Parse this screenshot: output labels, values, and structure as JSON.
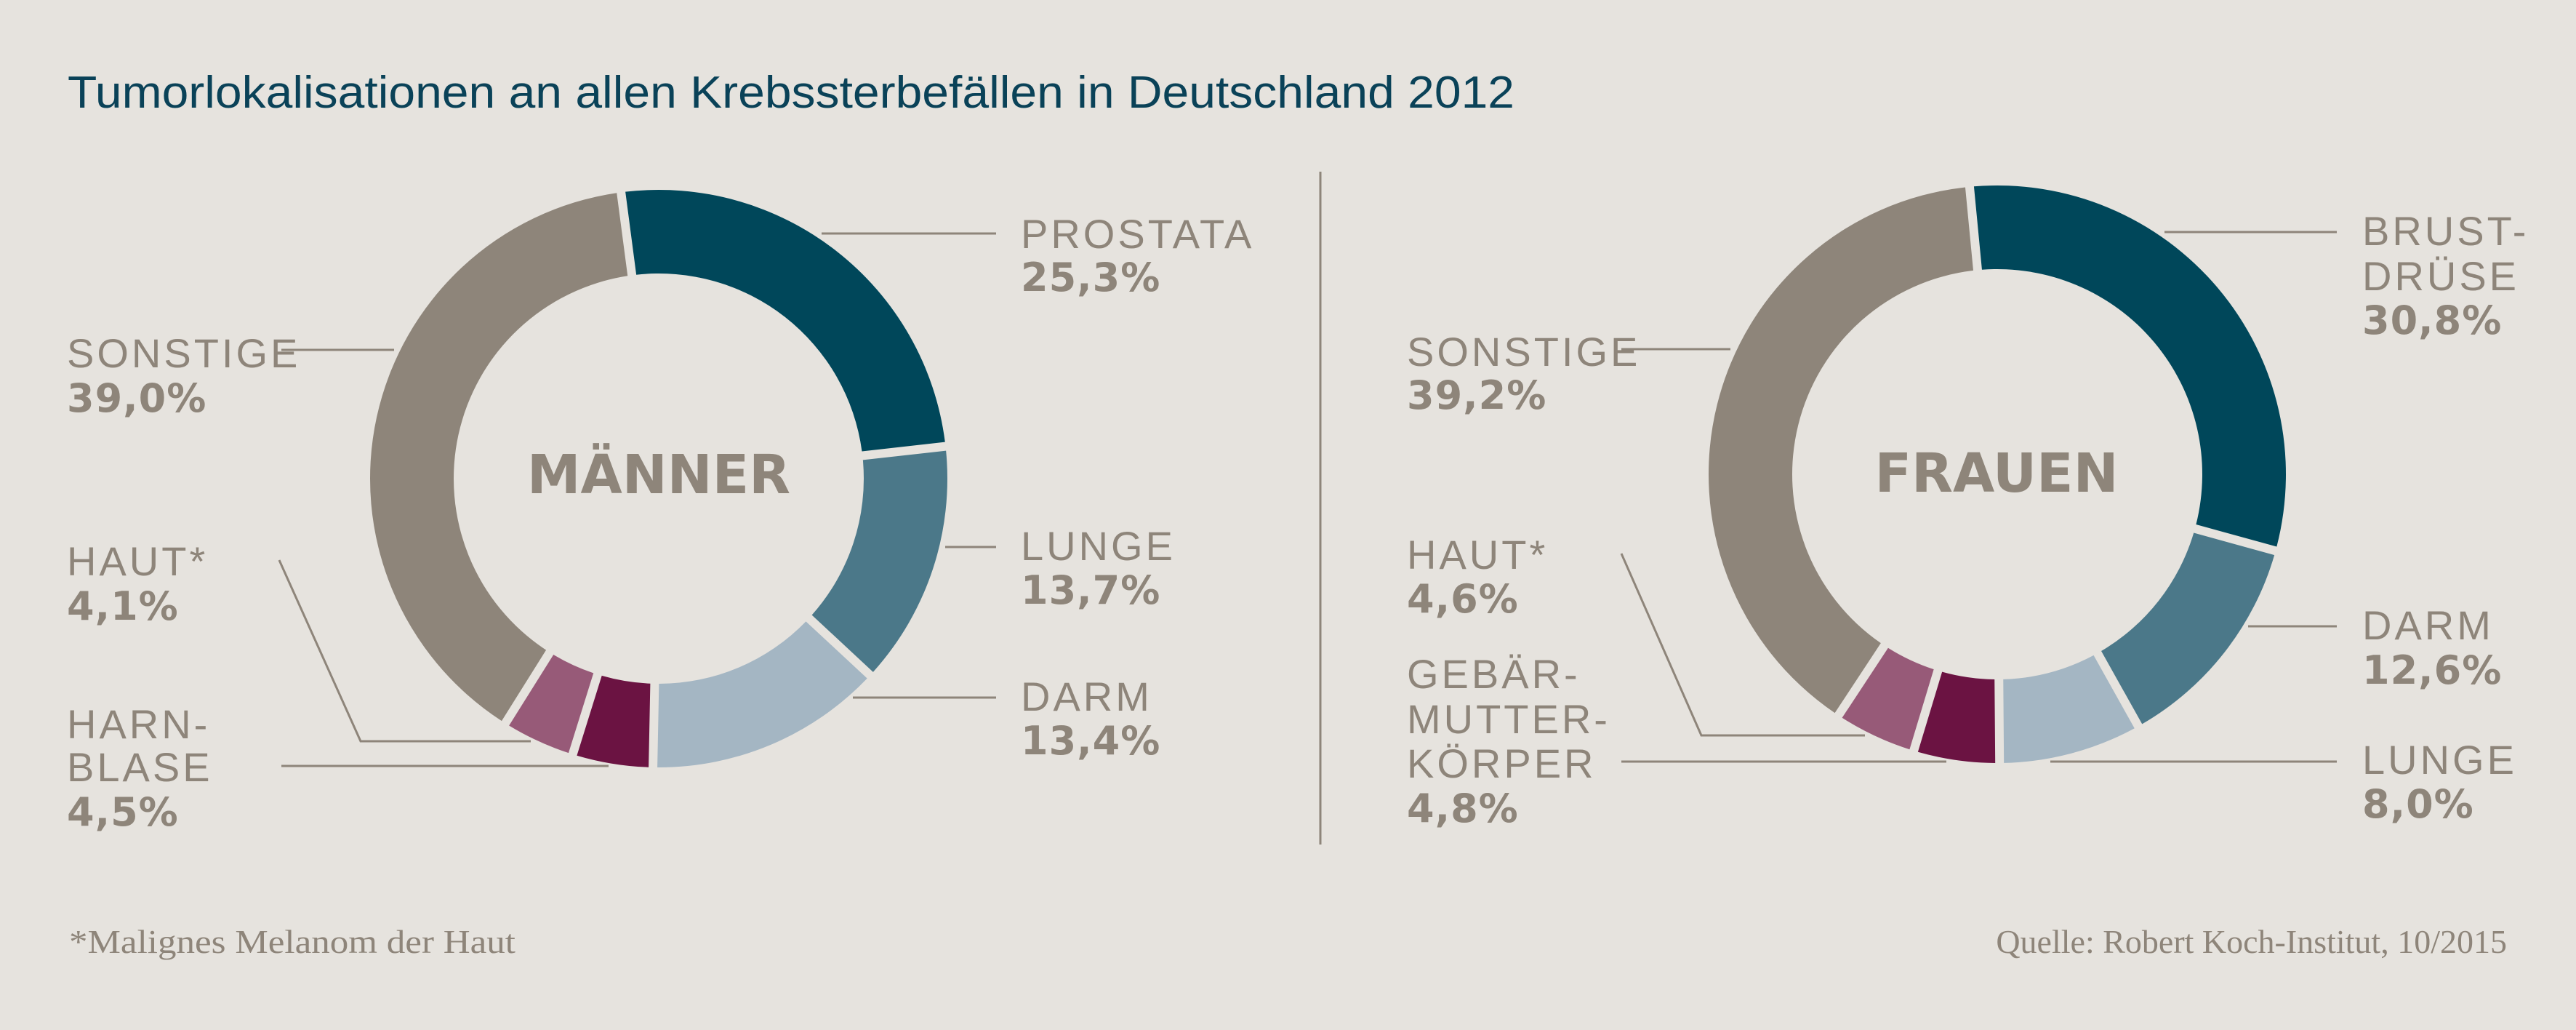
{
  "background": "#e6e3de",
  "title": "Tumorlokalisationen an allen Krebssterbefällen in Deutschland 2012",
  "footnote": "*Malignes Melanom der Haut",
  "source": "Quelle: Robert Koch-Institut, 10/2015",
  "colors": {
    "title": "#0a4258",
    "text": "#8e857a",
    "prostata_brust": "#00475a",
    "lunge_darm": "#4b7889",
    "darm_lunge": "#a4b6c3",
    "harnblase_gebaermutter": "#6b1342",
    "haut": "#975a78",
    "sonstige": "#8e857a"
  },
  "chart_data": [
    {
      "type": "pie",
      "subtype": "donut",
      "title": "MÄNNER",
      "unit": "%",
      "direction": "clockwise",
      "start": "top",
      "slices": [
        {
          "name": "PROSTATA",
          "lines": [
            "PROSTATA"
          ],
          "value": 25.3,
          "value_label": "25,3%",
          "color": "#00475a"
        },
        {
          "name": "LUNGE",
          "lines": [
            "LUNGE"
          ],
          "value": 13.7,
          "value_label": "13,7%",
          "color": "#4b7889"
        },
        {
          "name": "DARM",
          "lines": [
            "DARM"
          ],
          "value": 13.4,
          "value_label": "13,4%",
          "color": "#a4b6c3"
        },
        {
          "name": "HARNBLASE",
          "lines": [
            "HARN-",
            "BLASE"
          ],
          "value": 4.5,
          "value_label": "4,5%",
          "color": "#6b1342"
        },
        {
          "name": "HAUT*",
          "lines": [
            "HAUT*"
          ],
          "value": 4.1,
          "value_label": "4,1%",
          "color": "#975a78"
        },
        {
          "name": "SONSTIGE",
          "lines": [
            "SONSTIGE"
          ],
          "value": 39.0,
          "value_label": "39,0%",
          "color": "#8e857a"
        }
      ]
    },
    {
      "type": "pie",
      "subtype": "donut",
      "title": "FRAUEN",
      "unit": "%",
      "direction": "clockwise",
      "start": "top",
      "slices": [
        {
          "name": "BRUSTDRÜSE",
          "lines": [
            "BRUST-",
            "DRÜSE"
          ],
          "value": 30.8,
          "value_label": "30,8%",
          "color": "#00475a"
        },
        {
          "name": "DARM",
          "lines": [
            "DARM"
          ],
          "value": 12.6,
          "value_label": "12,6%",
          "color": "#4b7889"
        },
        {
          "name": "LUNGE",
          "lines": [
            "LUNGE"
          ],
          "value": 8.0,
          "value_label": "8,0%",
          "color": "#a4b6c3"
        },
        {
          "name": "GEBÄRMUTTERKÖRPER",
          "lines": [
            "GEBÄR-",
            "MUTTER-",
            "KÖRPER"
          ],
          "value": 4.8,
          "value_label": "4,8%",
          "color": "#6b1342"
        },
        {
          "name": "HAUT*",
          "lines": [
            "HAUT*"
          ],
          "value": 4.6,
          "value_label": "4,6%",
          "color": "#975a78"
        },
        {
          "name": "SONSTIGE",
          "lines": [
            "SONSTIGE"
          ],
          "value": 39.2,
          "value_label": "39,2%",
          "color": "#8e857a"
        }
      ]
    }
  ]
}
